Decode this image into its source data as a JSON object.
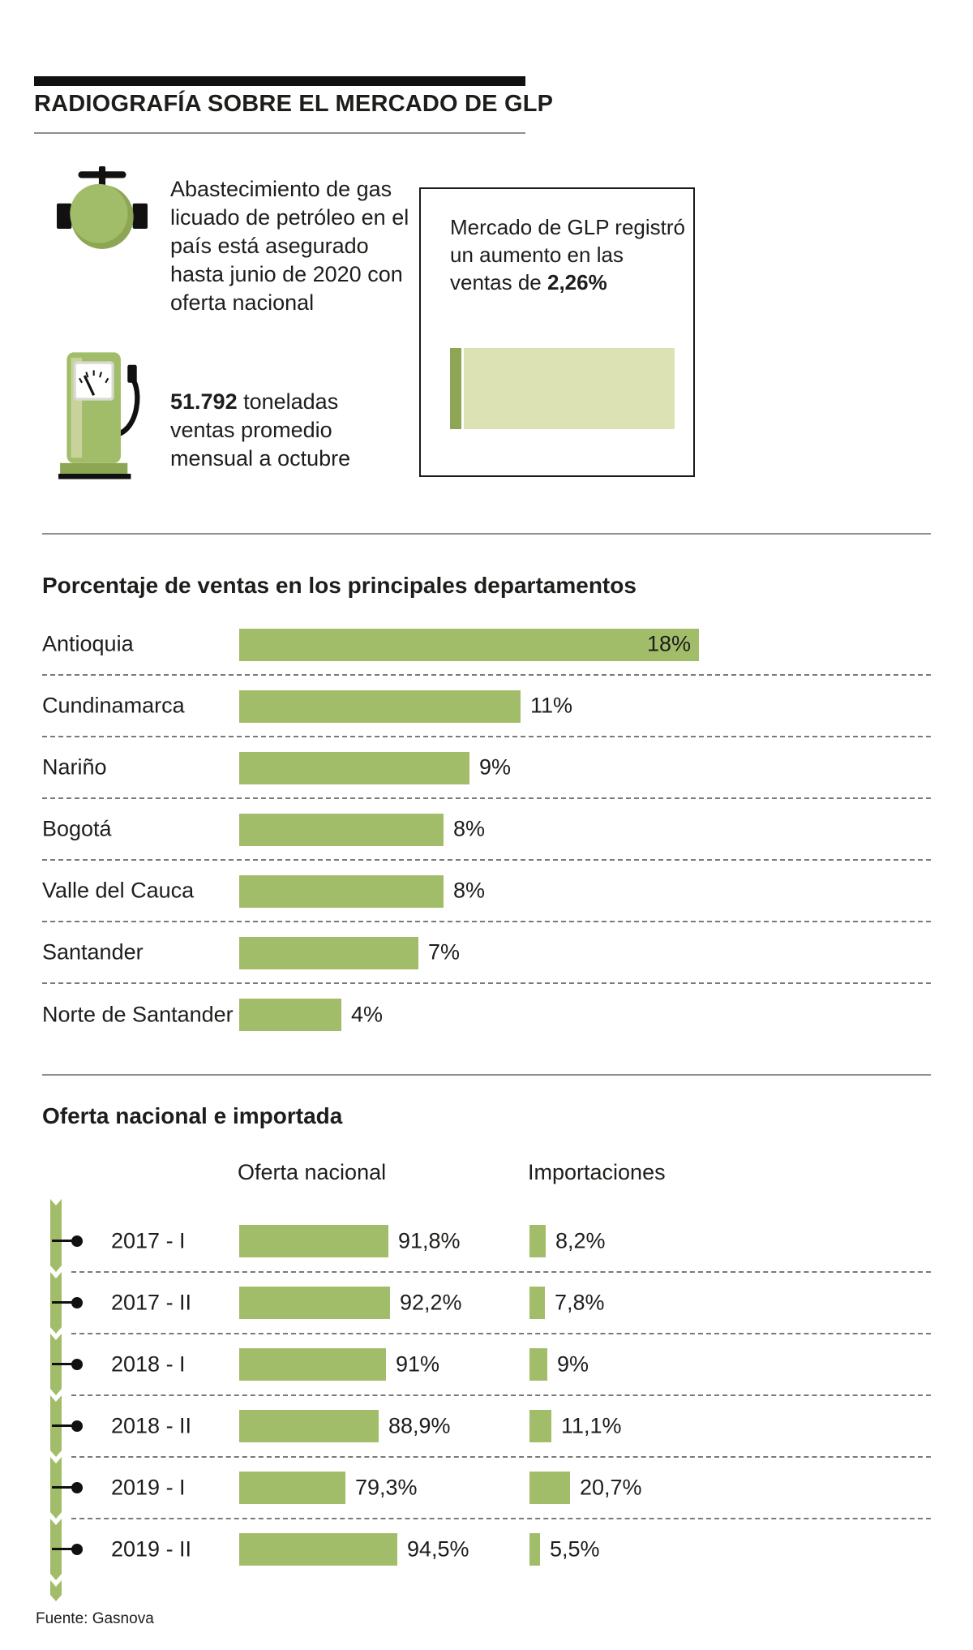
{
  "colors": {
    "green": "#a2bd6a",
    "green_dark": "#8ca654",
    "green_light": "#dce2b4",
    "green_pale": "#c7d39b",
    "ink": "#111111",
    "text": "#1d1d1b",
    "line": "#8f8f8f",
    "dash": "#7a7a7a"
  },
  "header": {
    "title": "RADIOGRAFÍA SOBRE EL MERCADO DE GLP"
  },
  "intro": {
    "supply_text": "Abastecimiento de gas licuado de petróleo en el país está asegurado hasta junio de 2020 con oferta nacional",
    "tonnage_bold": "51.792",
    "tonnage_rest": " toneladas ventas promedio mensual a octubre",
    "box_text": "Mercado de GLP registró un aumento en las ventas de ",
    "box_value": "2,26%",
    "growth_pct": 2.26
  },
  "chart_data": [
    {
      "type": "bar",
      "title": "Porcentaje de ventas en los principales departamentos",
      "categories": [
        "Antioquia",
        "Cundinamarca",
        "Nariño",
        "Bogotá",
        "Valle del Cauca",
        "Santander",
        "Norte de Santander"
      ],
      "values": [
        18,
        11,
        9,
        8,
        8,
        7,
        4
      ],
      "labels": [
        "18%",
        "11%",
        "9%",
        "8%",
        "8%",
        "7%",
        "4%"
      ],
      "unit": "%",
      "xlim": [
        0,
        18
      ],
      "orientation": "horizontal"
    },
    {
      "type": "bar",
      "title": "Oferta nacional e importada",
      "categories": [
        "2017 - I",
        "2017 - II",
        "2018 - I",
        "2018 - II",
        "2019 - I",
        "2019 - II"
      ],
      "series": [
        {
          "name": "Oferta nacional",
          "values": [
            91.8,
            92.2,
            91.0,
            88.9,
            79.3,
            94.5
          ],
          "labels": [
            "91,8%",
            "92,2%",
            "91%",
            "88,9%",
            "79,3%",
            "94,5%"
          ]
        },
        {
          "name": "Importaciones",
          "values": [
            8.2,
            7.8,
            9.0,
            11.1,
            20.7,
            5.5
          ],
          "labels": [
            "8,2%",
            "7,8%",
            "9%",
            "11,1%",
            "20,7%",
            "5,5%"
          ]
        }
      ],
      "unit": "%",
      "orientation": "horizontal"
    }
  ],
  "footer": {
    "source": "Fuente: Gasnova"
  }
}
